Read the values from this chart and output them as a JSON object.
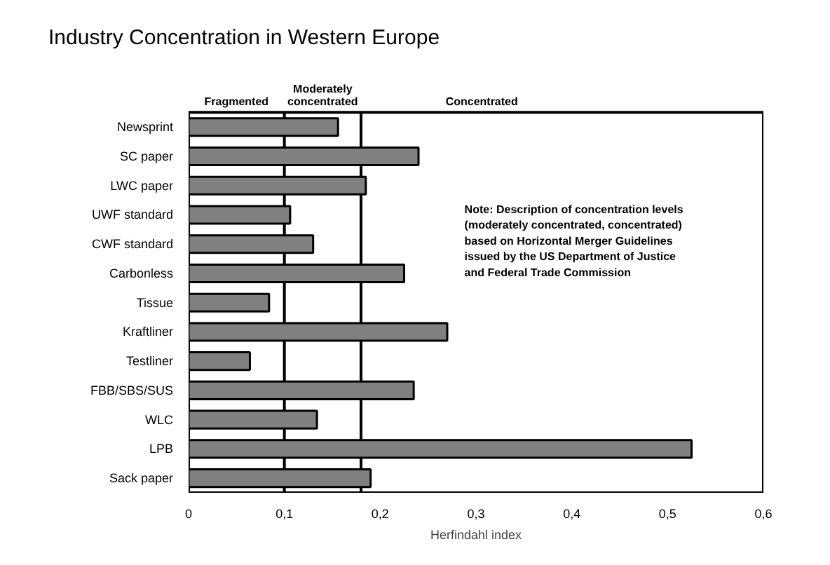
{
  "chart_data": {
    "type": "bar",
    "orientation": "horizontal",
    "title": "Industry Concentration in Western Europe",
    "xlabel": "Herfindahl index",
    "categories": [
      "Newsprint",
      "SC paper",
      "LWC paper",
      "UWF standard",
      "CWF standard",
      "Carbonless",
      "Tissue",
      "Kraftliner",
      "Testliner",
      "FBB/SBS/SUS",
      "WLC",
      "LPB",
      "Sack paper"
    ],
    "values": [
      0.156,
      0.24,
      0.185,
      0.106,
      0.13,
      0.225,
      0.084,
      0.27,
      0.064,
      0.235,
      0.134,
      0.525,
      0.19
    ],
    "color": "#808080",
    "xlim": [
      0,
      0.6
    ],
    "xticks": [
      {
        "value": 0,
        "label": "0"
      },
      {
        "value": 0.1,
        "label": "0,1"
      },
      {
        "value": 0.2,
        "label": "0,2"
      },
      {
        "value": 0.3,
        "label": "0,3"
      },
      {
        "value": 0.4,
        "label": "0,4"
      },
      {
        "value": 0.5,
        "label": "0,5"
      },
      {
        "value": 0.6,
        "label": "0,6"
      }
    ],
    "ref_lines": [
      {
        "axis": "x",
        "value": 0.1,
        "label": null
      },
      {
        "axis": "x",
        "value": 0.18,
        "label": null
      }
    ],
    "annotations": [
      "Fragmented",
      "Moderately\nconcentrated",
      "Concentrated",
      "Note: Description of concentration levels\n(moderately concentrated, concentrated)\nbased on Horizontal Merger Guidelines\nissued by the US Department of Justice\nand Federal Trade Commission"
    ],
    "grid": false
  }
}
